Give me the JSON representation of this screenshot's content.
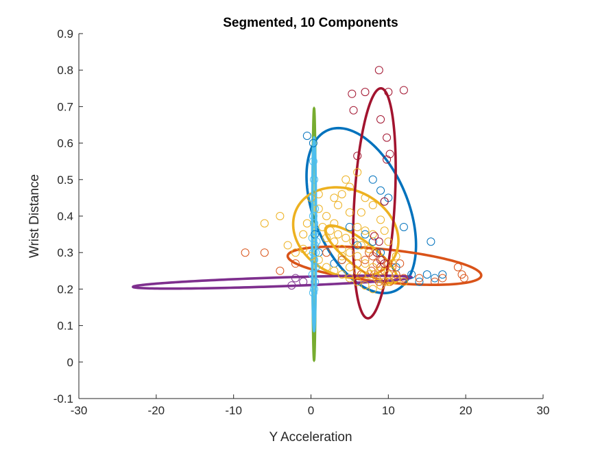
{
  "chart_data": {
    "type": "scatter",
    "title": "Segmented, 10 Components",
    "xlabel": "Y Acceleration",
    "ylabel": "Wrist Distance",
    "xlim": [
      -30,
      30
    ],
    "ylim": [
      -0.1,
      0.9
    ],
    "xticks": [
      -30,
      -20,
      -10,
      0,
      10,
      20,
      30
    ],
    "yticks": [
      -0.1,
      0,
      0.1,
      0.2,
      0.3,
      0.4,
      0.5,
      0.6,
      0.7,
      0.8,
      0.9
    ],
    "grid": false,
    "series": [
      {
        "color": "#0072BD",
        "points": [
          [
            -0.5,
            0.62
          ],
          [
            0.3,
            0.6
          ],
          [
            8,
            0.5
          ],
          [
            9,
            0.47
          ],
          [
            10,
            0.45
          ],
          [
            9.5,
            0.44
          ],
          [
            12,
            0.37
          ],
          [
            15.5,
            0.33
          ],
          [
            5,
            0.37
          ],
          [
            7,
            0.35
          ],
          [
            8,
            0.33
          ],
          [
            9,
            0.3
          ],
          [
            11,
            0.26
          ],
          [
            13,
            0.24
          ],
          [
            15,
            0.24
          ],
          [
            16,
            0.23
          ],
          [
            17,
            0.24
          ],
          [
            14,
            0.22
          ],
          [
            3,
            0.27
          ],
          [
            1,
            0.3
          ],
          [
            0.5,
            0.35
          ],
          [
            6,
            0.32
          ],
          [
            4,
            0.28
          ]
        ]
      },
      {
        "color": "#D95319",
        "points": [
          [
            -8.5,
            0.3
          ],
          [
            -6,
            0.3
          ],
          [
            -4,
            0.25
          ],
          [
            -2,
            0.27
          ],
          [
            2,
            0.3
          ],
          [
            4,
            0.28
          ],
          [
            6,
            0.27
          ],
          [
            7,
            0.28
          ],
          [
            7.5,
            0.3
          ],
          [
            8,
            0.29
          ],
          [
            8.5,
            0.27
          ],
          [
            9,
            0.26
          ],
          [
            9.5,
            0.25
          ],
          [
            10,
            0.27
          ],
          [
            10.5,
            0.26
          ],
          [
            11,
            0.24
          ],
          [
            12,
            0.23
          ],
          [
            14,
            0.23
          ],
          [
            16,
            0.22
          ],
          [
            17,
            0.23
          ],
          [
            19,
            0.26
          ],
          [
            19.5,
            0.24
          ],
          [
            19.8,
            0.23
          ],
          [
            8.2,
            0.24
          ],
          [
            8.8,
            0.22
          ],
          [
            7.8,
            0.25
          ],
          [
            9.2,
            0.28
          ],
          [
            6.5,
            0.24
          ],
          [
            10.2,
            0.22
          ],
          [
            11.5,
            0.27
          ]
        ]
      },
      {
        "color": "#EDB120",
        "points": [
          [
            -6,
            0.38
          ],
          [
            -4,
            0.4
          ],
          [
            -3,
            0.32
          ],
          [
            -2,
            0.3
          ],
          [
            -1,
            0.35
          ],
          [
            0,
            0.45
          ],
          [
            1,
            0.42
          ],
          [
            2,
            0.4
          ],
          [
            3,
            0.38
          ],
          [
            3.5,
            0.43
          ],
          [
            4,
            0.46
          ],
          [
            4.5,
            0.5
          ],
          [
            5,
            0.48
          ],
          [
            6,
            0.52
          ],
          [
            7,
            0.45
          ],
          [
            8,
            0.43
          ],
          [
            9,
            0.39
          ],
          [
            9.5,
            0.36
          ],
          [
            10,
            0.33
          ],
          [
            2,
            0.34
          ],
          [
            3,
            0.33
          ],
          [
            4,
            0.31
          ],
          [
            5,
            0.3
          ],
          [
            6,
            0.29
          ],
          [
            7,
            0.27
          ],
          [
            8,
            0.26
          ],
          [
            9,
            0.25
          ],
          [
            10,
            0.24
          ],
          [
            11,
            0.23
          ],
          [
            12,
            0.22
          ],
          [
            1,
            0.28
          ],
          [
            2,
            0.26
          ],
          [
            3,
            0.25
          ],
          [
            4,
            0.24
          ],
          [
            5,
            0.23
          ],
          [
            6,
            0.22
          ],
          [
            7,
            0.21
          ],
          [
            8,
            0.2
          ],
          [
            9,
            0.21
          ],
          [
            10,
            0.22
          ],
          [
            -1,
            0.31
          ],
          [
            0,
            0.29
          ],
          [
            1.5,
            0.37
          ],
          [
            2.5,
            0.36
          ],
          [
            3.5,
            0.35
          ],
          [
            4.5,
            0.34
          ],
          [
            5.5,
            0.33
          ],
          [
            6.5,
            0.32
          ],
          [
            7.5,
            0.31
          ],
          [
            8.5,
            0.3
          ],
          [
            6,
            0.37
          ],
          [
            7,
            0.36
          ],
          [
            8,
            0.35
          ],
          [
            5,
            0.41
          ],
          [
            6.5,
            0.41
          ],
          [
            3,
            0.45
          ],
          [
            -0.5,
            0.38
          ],
          [
            1,
            0.46
          ],
          [
            7.5,
            0.24
          ],
          [
            8.5,
            0.23
          ],
          [
            9.5,
            0.22
          ],
          [
            6,
            0.25
          ],
          [
            5,
            0.26
          ],
          [
            4,
            0.29
          ],
          [
            10.5,
            0.27
          ],
          [
            11,
            0.29
          ]
        ]
      },
      {
        "color": "#7E2F8E",
        "points": [
          [
            -2,
            0.23
          ],
          [
            -2.5,
            0.21
          ],
          [
            -1,
            0.22
          ],
          [
            0.5,
            0.22
          ]
        ]
      },
      {
        "color": "#4DBEEE",
        "points": [
          [
            0.3,
            0.55
          ],
          [
            0.4,
            0.5
          ],
          [
            0.2,
            0.45
          ],
          [
            0.5,
            0.42
          ],
          [
            0.3,
            0.4
          ],
          [
            0.4,
            0.38
          ],
          [
            0.6,
            0.36
          ],
          [
            0.2,
            0.34
          ],
          [
            0.5,
            0.32
          ],
          [
            0.3,
            0.3
          ],
          [
            0.4,
            0.28
          ],
          [
            0.6,
            0.26
          ],
          [
            0.2,
            0.24
          ],
          [
            0.5,
            0.22
          ],
          [
            0.4,
            0.2
          ],
          [
            0.3,
            0.19
          ],
          [
            0.6,
            0.3
          ],
          [
            0.7,
            0.33
          ]
        ]
      },
      {
        "color": "#A2142F",
        "points": [
          [
            8.8,
            0.8
          ],
          [
            12,
            0.745
          ],
          [
            10,
            0.74
          ],
          [
            7,
            0.74
          ],
          [
            5.3,
            0.735
          ],
          [
            5.5,
            0.69
          ],
          [
            9,
            0.665
          ],
          [
            9.8,
            0.615
          ],
          [
            10.2,
            0.57
          ],
          [
            9.8,
            0.555
          ],
          [
            6,
            0.565
          ],
          [
            9.5,
            0.44
          ],
          [
            8.2,
            0.345
          ],
          [
            8.8,
            0.33
          ],
          [
            8.5,
            0.3
          ],
          [
            9,
            0.28
          ],
          [
            9.5,
            0.27
          ]
        ]
      }
    ],
    "ellipses": [
      {
        "color": "#0072BD",
        "center": [
          6.5,
          0.415
        ],
        "axis1": [
          -4.8,
          0.215
        ],
        "axis2": [
          5.2,
          0.07
        ]
      },
      {
        "color": "#D95319",
        "center": [
          9.5,
          0.264
        ],
        "axis1": [
          12.5,
          -0.025
        ],
        "axis2": [
          -0.4,
          0.046
        ]
      },
      {
        "color": "#EDB120",
        "center": [
          4.5,
          0.355
        ],
        "axis1": [
          -5.5,
          0.09
        ],
        "axis2": [
          4.0,
          0.085
        ]
      },
      {
        "color": "#EDB120",
        "center": [
          6.5,
          0.295
        ],
        "axis1": [
          4.5,
          -0.075
        ],
        "axis2": [
          -1.2,
          -0.025
        ]
      },
      {
        "color": "#7E2F8E",
        "center": [
          -5.0,
          0.219
        ],
        "axis1": [
          18.0,
          0.013
        ],
        "axis2": [
          -0.1,
          0.012
        ]
      },
      {
        "color": "#A2142F",
        "center": [
          8.2,
          0.435
        ],
        "axis1": [
          0.9,
          0.315
        ],
        "axis2": [
          2.6,
          -0.008
        ]
      },
      {
        "color": "#77AC30",
        "center": [
          0.4,
          0.35
        ],
        "axis1": [
          0.0,
          0.345
        ],
        "axis2": [
          0.2,
          0.0
        ]
      },
      {
        "color": "#4DBEEE",
        "center": [
          0.4,
          0.35
        ],
        "axis1": [
          0.0,
          0.265
        ],
        "axis2": [
          0.25,
          0.0
        ]
      }
    ]
  }
}
